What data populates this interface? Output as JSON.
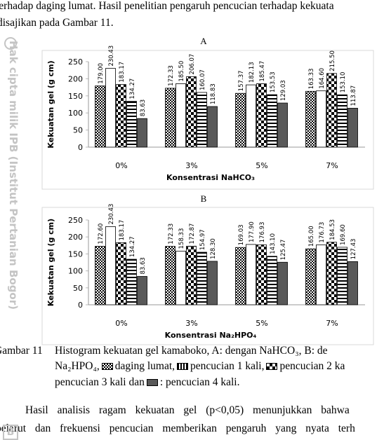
{
  "text_top": [
    "terhadap daging lumat. Hasil penelitian pengaruh pencucian terhadap kekuata",
    "disajikan pada Gambar 11."
  ],
  "watermark": "Hak cipta milik IPB (Institut Pertanian Bogor)",
  "watermark_logo": "B",
  "chart_data": [
    {
      "type": "bar",
      "title": "A",
      "x_label": "Konsentrasi NaHCO₃",
      "y_label": "Kekuatan gel (g cm)",
      "categories": [
        "0%",
        "3%",
        "5%",
        "7%"
      ],
      "ylim": [
        0,
        250
      ],
      "yticks": [
        0,
        50,
        100,
        150,
        200,
        250
      ],
      "series": [
        {
          "color": "#333333",
          "values": [
            179.0,
            172.33,
            157.37,
            163.33
          ],
          "value_labels": [
            "179.00",
            "172.33",
            "157.37",
            "163.33"
          ]
        },
        {
          "color": "#ffffff",
          "values": [
            230.43,
            185.5,
            182.13,
            164.6
          ],
          "value_labels": [
            "230.43",
            "185.50",
            "182.13",
            "164.60"
          ]
        },
        {
          "color": "#222222",
          "values": [
            183.17,
            206.07,
            185.47,
            215.5
          ],
          "value_labels": [
            "183.17",
            "206.07",
            "185.47",
            "215.50"
          ]
        },
        {
          "color": "#ffffff",
          "values": [
            134.27,
            160.07,
            153.53,
            153.1
          ],
          "value_labels": [
            "134.27",
            "160.07",
            "153.53",
            "153.10"
          ]
        },
        {
          "color": "#595959",
          "values": [
            83.63,
            118.83,
            129.03,
            113.87
          ],
          "value_labels": [
            "83.63",
            "118.83",
            "129.03",
            "113.87"
          ]
        }
      ]
    },
    {
      "type": "bar",
      "title": "B",
      "x_label": "Konsentrasi  Na₂HPO₄",
      "y_label": "Kekuatan gel (g cm)",
      "categories": [
        "0%",
        "3%",
        "5%",
        "7%"
      ],
      "ylim": [
        0,
        250
      ],
      "yticks": [
        0,
        50,
        100,
        150,
        200,
        250
      ],
      "series": [
        {
          "color": "#333333",
          "values": [
            172.6,
            172.33,
            169.03,
            165.0
          ],
          "value_labels": [
            "172.60",
            "172.33",
            "169.03",
            "165.00"
          ]
        },
        {
          "color": "#ffffff",
          "values": [
            230.43,
            158.33,
            177.9,
            176.73
          ],
          "value_labels": [
            "230.43",
            "158.33",
            "177.90",
            "176.73"
          ]
        },
        {
          "color": "#222222",
          "values": [
            183.17,
            172.87,
            176.93,
            184.53
          ],
          "value_labels": [
            "183.17",
            "172.87",
            "176.93",
            "184.53"
          ]
        },
        {
          "color": "#ffffff",
          "values": [
            134.27,
            154.97,
            143.1,
            169.6
          ],
          "value_labels": [
            "134.27",
            "154.97",
            "143.10",
            "169.60"
          ]
        },
        {
          "color": "#595959",
          "values": [
            83.63,
            128.3,
            125.47,
            127.43
          ],
          "value_labels": [
            "83.63",
            "128.30",
            "125.47",
            "127.43"
          ]
        }
      ]
    }
  ],
  "caption": {
    "label": "Gambar 11",
    "line1": "Histogram kekuatan gel kamaboko, A: dengan NaHCO₃, B: de",
    "line2": [
      "Na₂HPO₄,",
      "daging lumat,",
      "pencucian 1 kali,",
      "pencucian 2 ka"
    ],
    "line3": [
      "pencucian 3 kali dan",
      ": pencucian 4 kali."
    ]
  },
  "text_bottom": [
    "Hasil analisis ragam kekuatan gel (p<0,05) menunjukkan bahwa",
    "pelarut dan frekuensi pencucian memberikan pengaruh yang nyata terh"
  ]
}
